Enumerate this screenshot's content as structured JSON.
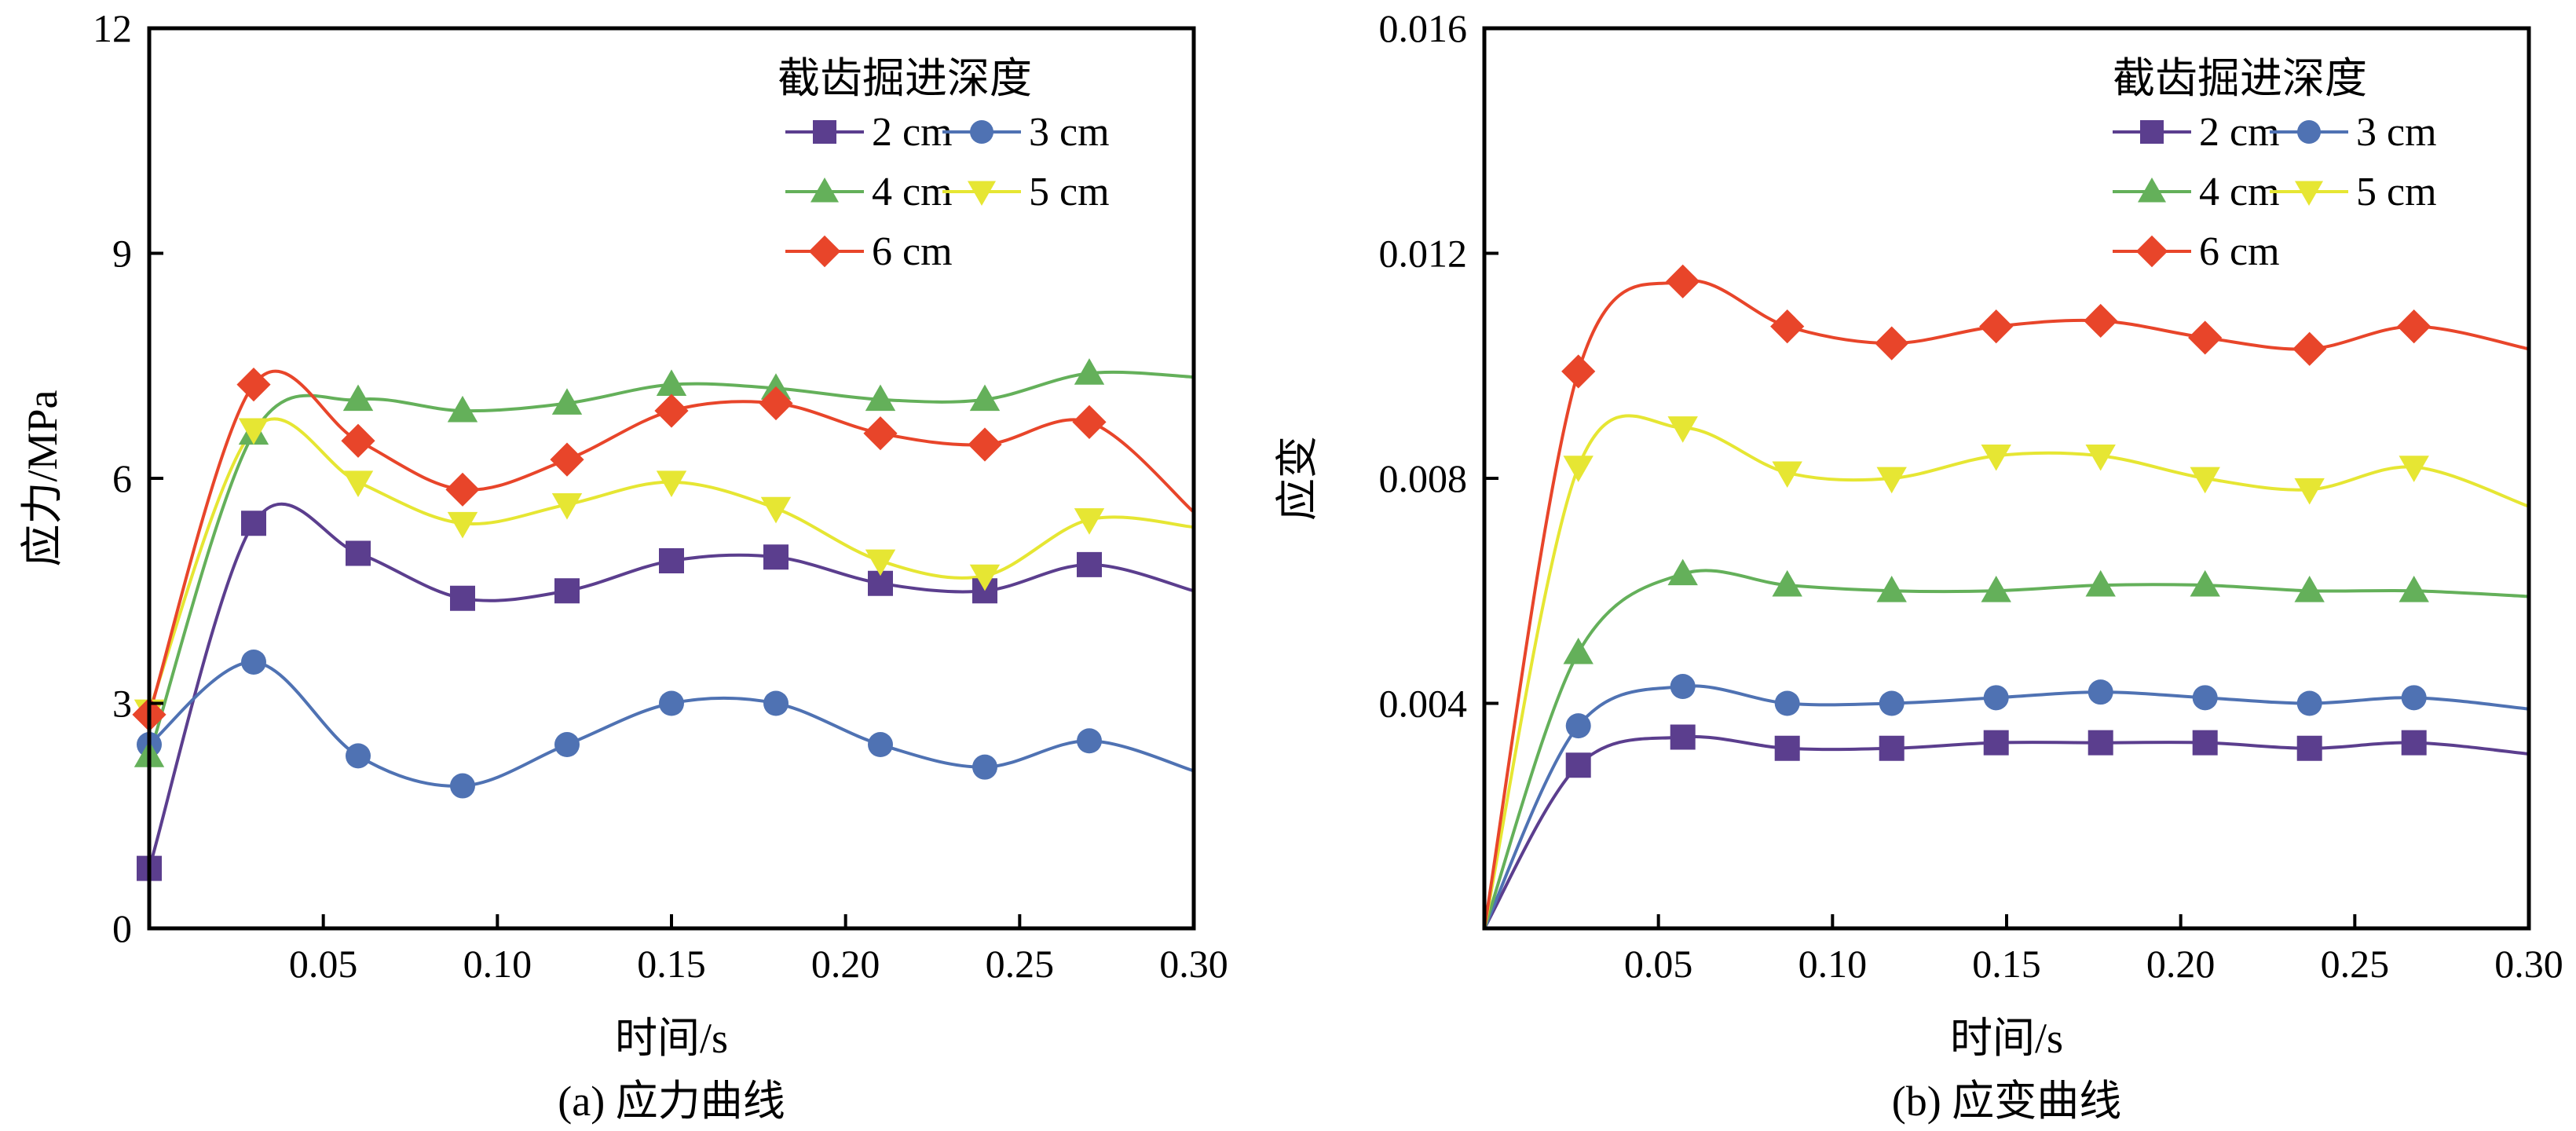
{
  "figure": {
    "background": "#ffffff",
    "colors": {
      "2 cm": "#5b3e8e",
      "3 cm": "#4f72b3",
      "4 cm": "#64b05a",
      "5 cm": "#e6e633",
      "6 cm": "#e8452a"
    },
    "markers": {
      "2 cm": "square",
      "3 cm": "circle",
      "4 cm": "triangle-up",
      "5 cm": "triangle-down",
      "6 cm": "diamond"
    }
  },
  "chart_data": [
    {
      "type": "line",
      "caption": "(a) 应力曲线",
      "xlabel": "时间/s",
      "ylabel": "应力/MPa",
      "xlim": [
        0,
        0.3
      ],
      "ylim": [
        0,
        12
      ],
      "xticks": [
        0.05,
        0.1,
        0.15,
        0.2,
        0.25,
        0.3
      ],
      "xtick_labels": [
        "0.05",
        "0.10",
        "0.15",
        "0.20",
        "0.25",
        "0.30"
      ],
      "yticks": [
        0,
        3,
        6,
        9,
        12
      ],
      "ytick_labels": [
        "0",
        "3",
        "6",
        "9",
        "12"
      ],
      "grid": false,
      "legend_title": "截齿掘进深度",
      "legend_position": "top-right",
      "x": [
        0,
        0.03,
        0.06,
        0.09,
        0.12,
        0.15,
        0.18,
        0.21,
        0.24,
        0.27
      ],
      "series": [
        {
          "name": "2 cm",
          "values": [
            0.8,
            5.4,
            5.0,
            4.4,
            4.5,
            4.9,
            4.95,
            4.6,
            4.5,
            4.85
          ],
          "end": [
            0.3,
            4.5
          ]
        },
        {
          "name": "3 cm",
          "values": [
            2.45,
            3.55,
            2.3,
            1.9,
            2.45,
            3.0,
            3.0,
            2.45,
            2.15,
            2.5
          ],
          "end": [
            0.3,
            2.1
          ]
        },
        {
          "name": "4 cm",
          "values": [
            2.3,
            6.6,
            7.05,
            6.9,
            7.0,
            7.25,
            7.2,
            7.05,
            7.05,
            7.4
          ],
          "end": [
            0.3,
            7.35
          ]
        },
        {
          "name": "5 cm",
          "values": [
            2.9,
            6.65,
            5.95,
            5.4,
            5.65,
            5.95,
            5.6,
            4.9,
            4.7,
            5.45
          ],
          "end": [
            0.3,
            5.35
          ]
        },
        {
          "name": "6 cm",
          "values": [
            2.85,
            7.25,
            6.5,
            5.85,
            6.25,
            6.9,
            7.0,
            6.6,
            6.45,
            6.75
          ],
          "end": [
            0.3,
            5.55
          ]
        }
      ]
    },
    {
      "type": "line",
      "caption": "(b) 应变曲线",
      "xlabel": "时间/s",
      "ylabel": "应变",
      "xlim": [
        0,
        0.3
      ],
      "ylim": [
        0,
        0.016
      ],
      "xticks": [
        0.05,
        0.1,
        0.15,
        0.2,
        0.25,
        0.3
      ],
      "xtick_labels": [
        "0.05",
        "0.10",
        "0.15",
        "0.20",
        "0.25",
        "0.30"
      ],
      "yticks": [
        0.004,
        0.008,
        0.012,
        0.016
      ],
      "ytick_labels": [
        "0.004",
        "0.008",
        "0.012",
        "0.016"
      ],
      "grid": false,
      "legend_title": "截齿掘进深度",
      "legend_position": "top-right",
      "x": [
        0.027,
        0.057,
        0.087,
        0.117,
        0.147,
        0.177,
        0.207,
        0.237,
        0.267
      ],
      "start": [
        0,
        0
      ],
      "series": [
        {
          "name": "2 cm",
          "values": [
            0.0029,
            0.0034,
            0.0032,
            0.0032,
            0.0033,
            0.0033,
            0.0033,
            0.0032,
            0.0033
          ],
          "end": [
            0.3,
            0.0031
          ]
        },
        {
          "name": "3 cm",
          "values": [
            0.0036,
            0.0043,
            0.004,
            0.004,
            0.0041,
            0.0042,
            0.0041,
            0.004,
            0.0041
          ],
          "end": [
            0.3,
            0.0039
          ]
        },
        {
          "name": "4 cm",
          "values": [
            0.0049,
            0.0063,
            0.0061,
            0.006,
            0.006,
            0.0061,
            0.0061,
            0.006,
            0.006
          ],
          "end": [
            0.3,
            0.0059
          ]
        },
        {
          "name": "5 cm",
          "values": [
            0.0082,
            0.0089,
            0.0081,
            0.008,
            0.0084,
            0.0084,
            0.008,
            0.0078,
            0.0082
          ],
          "end": [
            0.3,
            0.0075
          ]
        },
        {
          "name": "6 cm",
          "values": [
            0.0099,
            0.0115,
            0.0107,
            0.0104,
            0.0107,
            0.0108,
            0.0105,
            0.0103,
            0.0107
          ],
          "end": [
            0.3,
            0.0103
          ]
        }
      ]
    }
  ]
}
